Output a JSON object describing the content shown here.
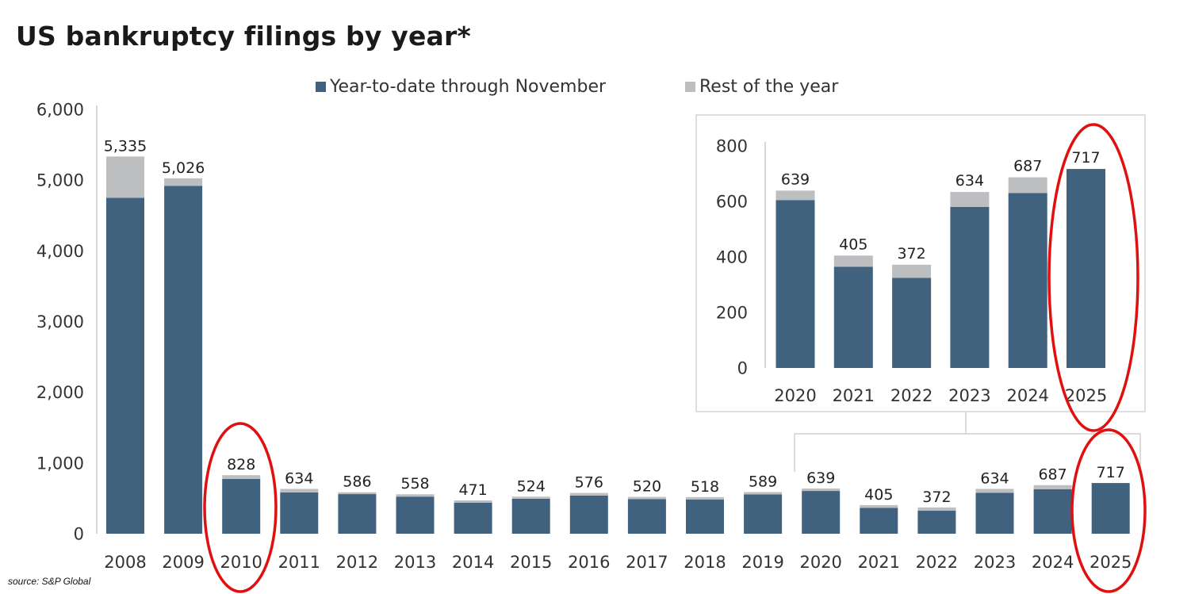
{
  "title": "US bankruptcy filings by year*",
  "source": "source: S&P Global",
  "colors": {
    "ytd": "#40627f",
    "rest": "#bdbec0",
    "highlight": "#e01010"
  },
  "legend": {
    "ytd_label": "Year-to-date through November",
    "rest_label": "Rest of the year"
  },
  "chart_data": [
    {
      "type": "bar",
      "stacked": true,
      "title": "US bankruptcy filings by year*",
      "categories": [
        "2008",
        "2009",
        "2010",
        "2011",
        "2012",
        "2013",
        "2014",
        "2015",
        "2016",
        "2017",
        "2018",
        "2019",
        "2020",
        "2021",
        "2022",
        "2023",
        "2024",
        "2025"
      ],
      "series": [
        {
          "name": "Year-to-date through November",
          "values": [
            4750,
            4920,
            775,
            585,
            560,
            525,
            440,
            495,
            540,
            490,
            485,
            555,
            605,
            365,
            325,
            580,
            630,
            717
          ]
        },
        {
          "name": "Rest of the year",
          "values": [
            585,
            106,
            53,
            49,
            26,
            33,
            31,
            29,
            36,
            30,
            33,
            34,
            34,
            40,
            47,
            54,
            57,
            0
          ]
        }
      ],
      "totals": [
        5335,
        5026,
        828,
        634,
        586,
        558,
        471,
        524,
        576,
        520,
        518,
        589,
        639,
        405,
        372,
        634,
        687,
        717
      ],
      "ylim": [
        0,
        6000
      ],
      "yticks": [
        0,
        1000,
        2000,
        3000,
        4000,
        5000,
        6000
      ],
      "ytick_labels": [
        "0",
        "1,000",
        "2,000",
        "3,000",
        "4,000",
        "5,000",
        "6,000"
      ],
      "total_labels": [
        "5,335",
        "5,026",
        "828",
        "634",
        "586",
        "558",
        "471",
        "524",
        "576",
        "520",
        "518",
        "589",
        "639",
        "405",
        "372",
        "634",
        "687",
        "717"
      ],
      "legend_position": "top",
      "grid": false,
      "highlighted": [
        "2010",
        "2025"
      ]
    },
    {
      "type": "bar",
      "stacked": true,
      "inset": true,
      "categories": [
        "2020",
        "2021",
        "2022",
        "2023",
        "2024",
        "2025"
      ],
      "series": [
        {
          "name": "Year-to-date through November",
          "values": [
            605,
            365,
            325,
            580,
            630,
            717
          ]
        },
        {
          "name": "Rest of the year",
          "values": [
            34,
            40,
            47,
            54,
            57,
            0
          ]
        }
      ],
      "totals": [
        639,
        405,
        372,
        634,
        687,
        717
      ],
      "ylim": [
        0,
        800
      ],
      "yticks": [
        0,
        200,
        400,
        600,
        800
      ],
      "ytick_labels": [
        "0",
        "200",
        "400",
        "600",
        "800"
      ],
      "total_labels": [
        "639",
        "405",
        "372",
        "634",
        "687",
        "717"
      ],
      "grid": false,
      "highlighted": [
        "2025"
      ]
    }
  ]
}
